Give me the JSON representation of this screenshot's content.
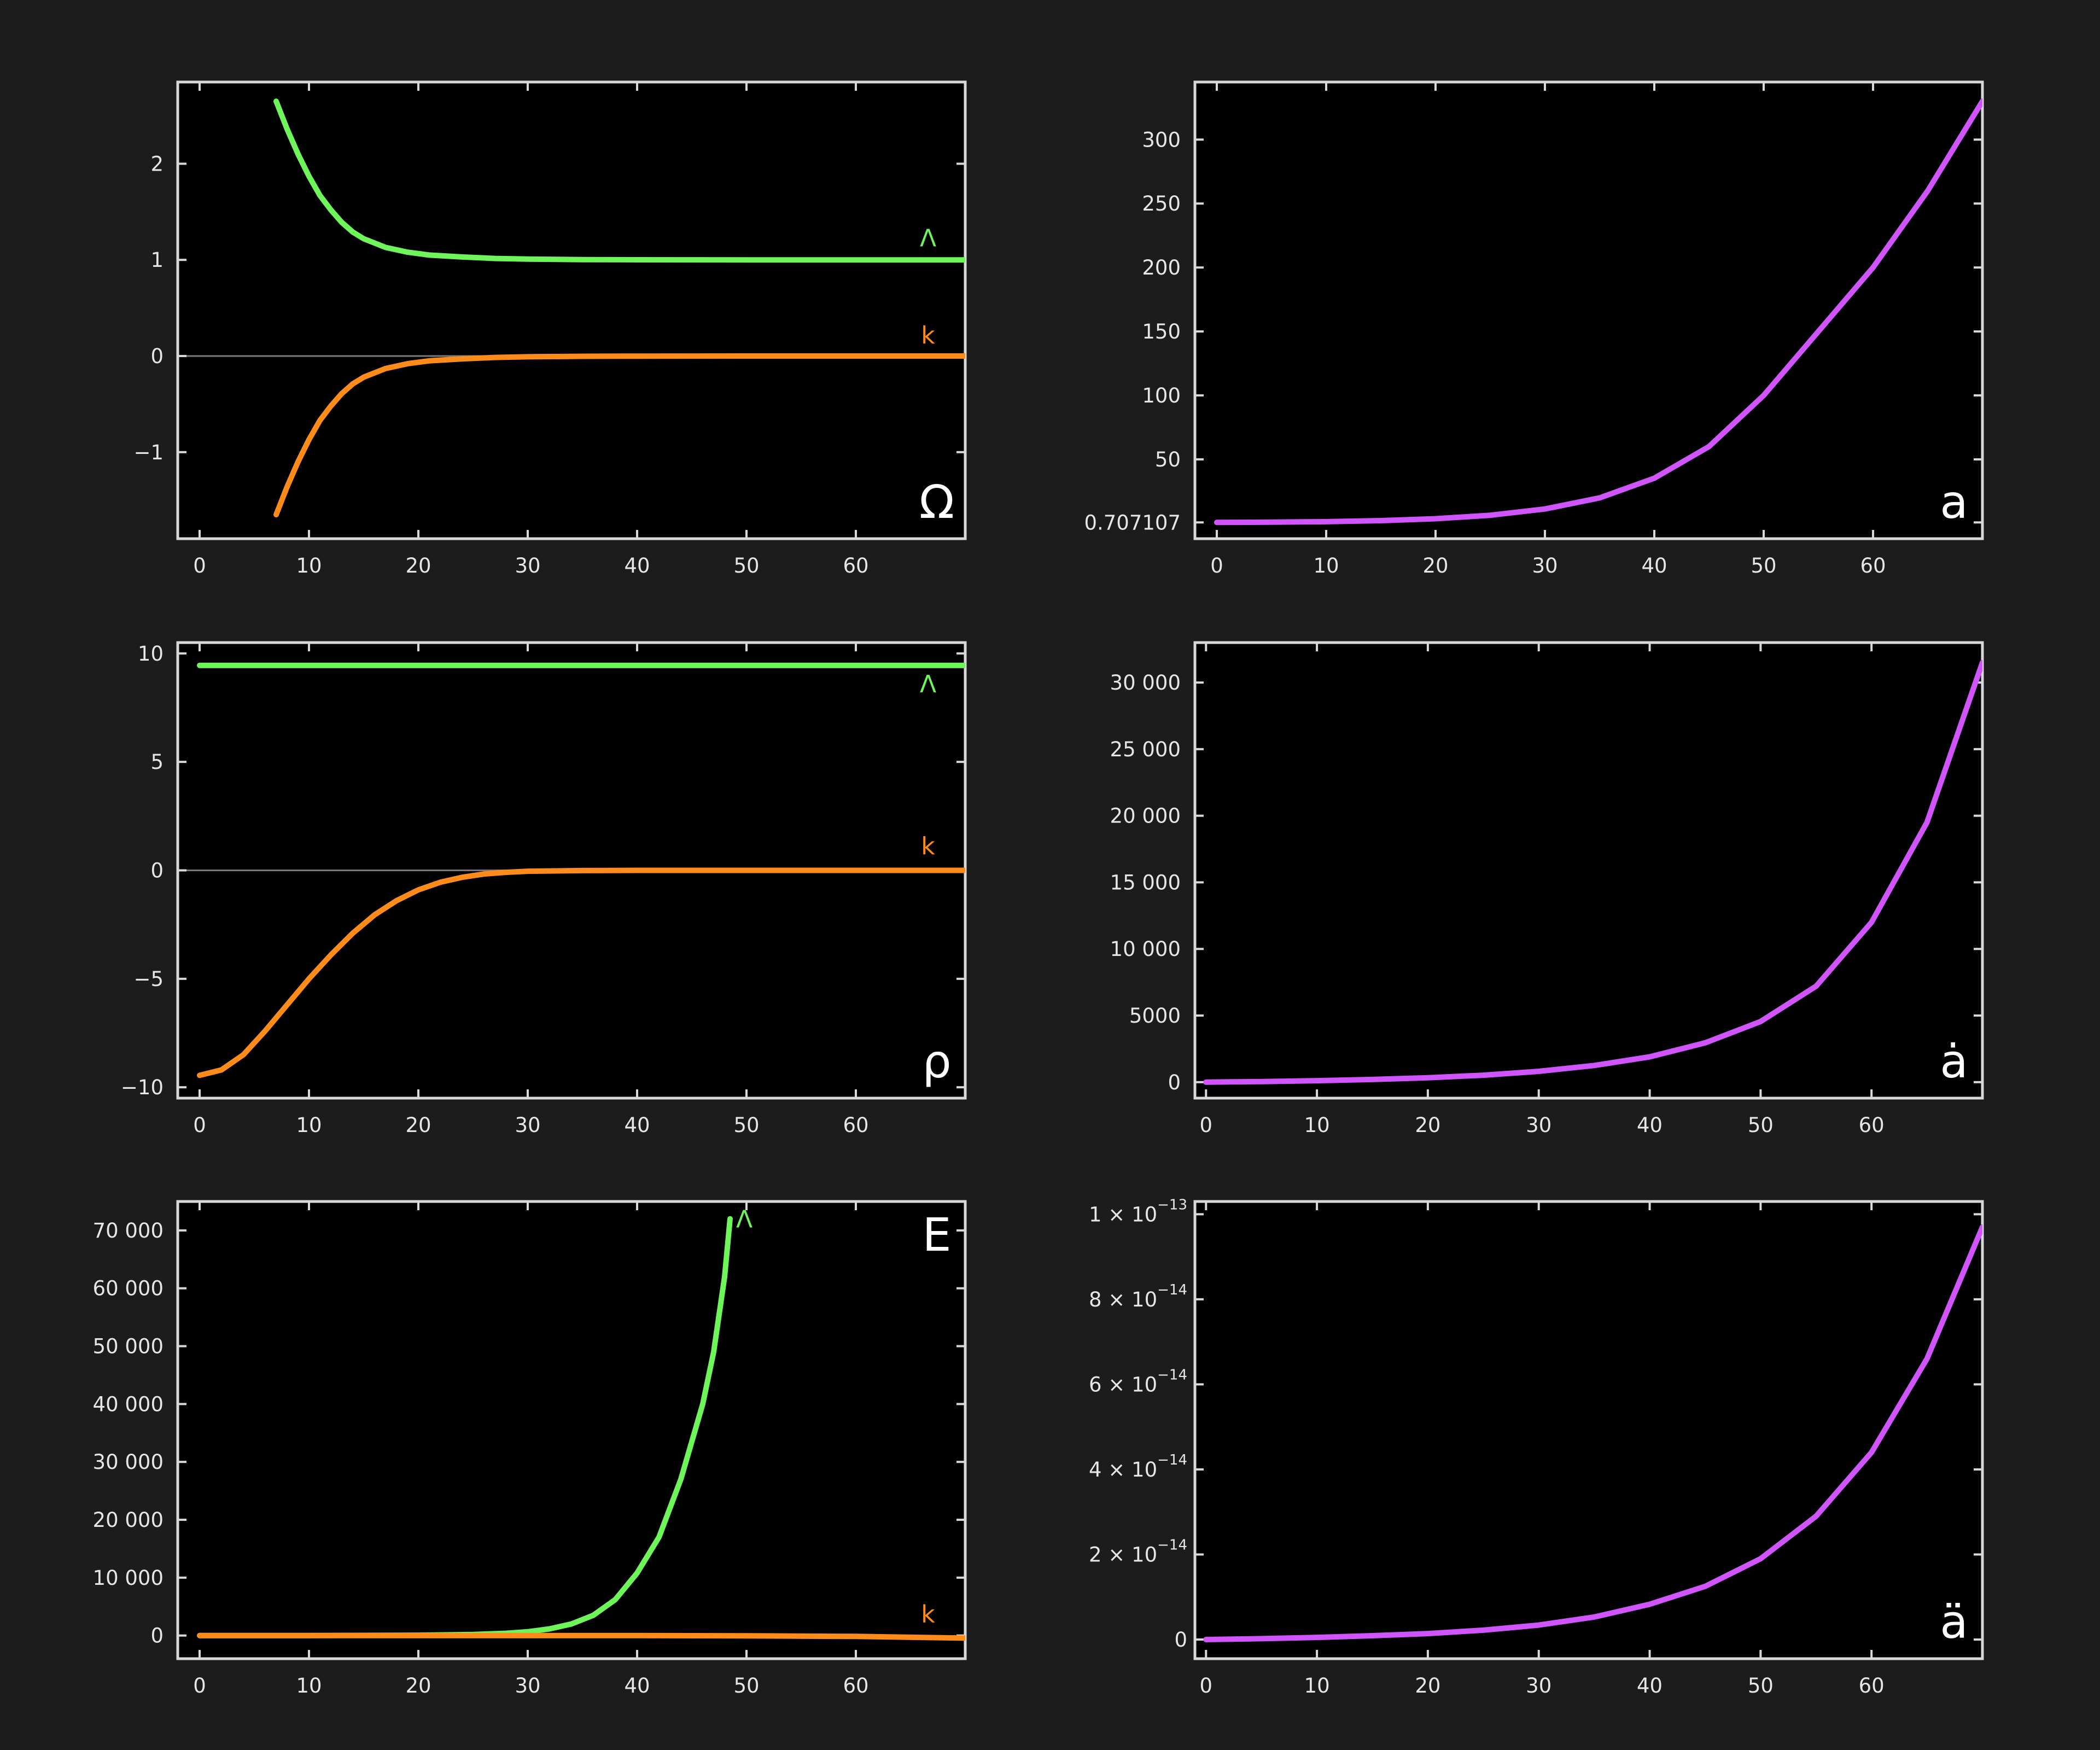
{
  "colors": {
    "background": "#1c1c1c",
    "plot_background": "#000000",
    "frame": "#d8d8d8",
    "lambda": "#6ef55a",
    "k": "#ff8c1a",
    "a": "#d155ff"
  },
  "chart_data": [
    {
      "id": "omega",
      "type": "line",
      "panel_label": "Ω",
      "xlim": [
        -2,
        70
      ],
      "ylim": [
        -1.9,
        2.85
      ],
      "x_ticks": [
        0,
        10,
        20,
        30,
        40,
        50,
        60
      ],
      "x_tick_labels": [
        "0",
        "10",
        "20",
        "30",
        "40",
        "50",
        "60"
      ],
      "y_ticks": [
        -1,
        0,
        1,
        2
      ],
      "y_tick_labels": [
        "−1",
        "0",
        "1",
        "2"
      ],
      "zero_line": true,
      "series": [
        {
          "name": "Λ",
          "color": "#6ef55a",
          "x": [
            7,
            8,
            9,
            10,
            11,
            12,
            13,
            14,
            15,
            17,
            19,
            21,
            24,
            27,
            30,
            35,
            40,
            50,
            60,
            70
          ],
          "y": [
            2.65,
            2.36,
            2.1,
            1.87,
            1.67,
            1.52,
            1.39,
            1.29,
            1.22,
            1.13,
            1.08,
            1.05,
            1.03,
            1.015,
            1.008,
            1.003,
            1.001,
            1.0,
            1.0,
            1.0
          ]
        },
        {
          "name": "k",
          "color": "#ff8c1a",
          "x": [
            7,
            8,
            9,
            10,
            11,
            12,
            13,
            14,
            15,
            17,
            19,
            21,
            24,
            27,
            30,
            35,
            40,
            50,
            60,
            70
          ],
          "y": [
            -1.65,
            -1.36,
            -1.1,
            -0.87,
            -0.67,
            -0.52,
            -0.39,
            -0.29,
            -0.22,
            -0.13,
            -0.08,
            -0.05,
            -0.03,
            -0.015,
            -0.008,
            -0.003,
            -0.001,
            0.0,
            0.0,
            0.0
          ]
        }
      ]
    },
    {
      "id": "a",
      "type": "line",
      "panel_label": "a",
      "xlim": [
        -2,
        70
      ],
      "ylim": [
        -12,
        345
      ],
      "x_ticks": [
        0,
        10,
        20,
        30,
        40,
        50,
        60
      ],
      "x_tick_labels": [
        "0",
        "10",
        "20",
        "30",
        "40",
        "50",
        "60"
      ],
      "y_ticks": [
        0.707107,
        50,
        100,
        150,
        200,
        250,
        300
      ],
      "y_tick_labels": [
        "0.707107",
        "50",
        "100",
        "150",
        "200",
        "250",
        "300"
      ],
      "zero_line": false,
      "series": [
        {
          "name": "",
          "color": "#d155ff",
          "x": [
            0,
            5,
            10,
            15,
            20,
            25,
            30,
            35,
            40,
            45,
            50,
            55,
            60,
            65,
            70
          ],
          "y": [
            0.707,
            0.9,
            1.3,
            2.1,
            3.6,
            6.3,
            11.2,
            19.9,
            35.3,
            60,
            100,
            150,
            200,
            260,
            330
          ]
        }
      ]
    },
    {
      "id": "rho",
      "type": "line",
      "panel_label": "ρ",
      "xlim": [
        -2,
        70
      ],
      "ylim": [
        -10.5,
        10.5
      ],
      "x_ticks": [
        0,
        10,
        20,
        30,
        40,
        50,
        60
      ],
      "x_tick_labels": [
        "0",
        "10",
        "20",
        "30",
        "40",
        "50",
        "60"
      ],
      "y_ticks": [
        -10,
        -5,
        0,
        5,
        10
      ],
      "y_tick_labels": [
        "−10",
        "−5",
        "0",
        "5",
        "10"
      ],
      "zero_line": true,
      "series": [
        {
          "name": "Λ",
          "color": "#6ef55a",
          "x": [
            0,
            70
          ],
          "y": [
            9.45,
            9.45
          ]
        },
        {
          "name": "k",
          "color": "#ff8c1a",
          "x": [
            0,
            2,
            4,
            6,
            8,
            10,
            12,
            14,
            16,
            18,
            20,
            22,
            24,
            26,
            28,
            30,
            35,
            40,
            50,
            60,
            70
          ],
          "y": [
            -9.45,
            -9.2,
            -8.5,
            -7.4,
            -6.2,
            -5.0,
            -3.9,
            -2.9,
            -2.05,
            -1.4,
            -0.9,
            -0.55,
            -0.32,
            -0.17,
            -0.09,
            -0.04,
            -0.01,
            0.0,
            0.0,
            0.0,
            0.0
          ]
        }
      ]
    },
    {
      "id": "adot",
      "type": "line",
      "panel_label": "ȧ",
      "xlim": [
        -1,
        70
      ],
      "ylim": [
        -1200,
        33000
      ],
      "x_ticks": [
        0,
        10,
        20,
        30,
        40,
        50,
        60
      ],
      "x_tick_labels": [
        "0",
        "10",
        "20",
        "30",
        "40",
        "50",
        "60"
      ],
      "y_ticks": [
        0,
        5000,
        10000,
        15000,
        20000,
        25000,
        30000
      ],
      "y_tick_labels": [
        "0",
        "5000",
        "10 000",
        "15 000",
        "20 000",
        "25 000",
        "30 000"
      ],
      "zero_line": false,
      "series": [
        {
          "name": "",
          "color": "#d155ff",
          "x": [
            0,
            5,
            10,
            15,
            20,
            25,
            30,
            35,
            40,
            45,
            50,
            55,
            60,
            65,
            70
          ],
          "y": [
            0,
            45,
            110,
            200,
            330,
            520,
            810,
            1250,
            1900,
            2950,
            4550,
            7200,
            12000,
            19500,
            31500
          ]
        }
      ]
    },
    {
      "id": "energy",
      "type": "line",
      "panel_label": "E",
      "xlim": [
        -2,
        70
      ],
      "ylim": [
        -4000,
        75000
      ],
      "x_ticks": [
        0,
        10,
        20,
        30,
        40,
        50,
        60
      ],
      "x_tick_labels": [
        "0",
        "10",
        "20",
        "30",
        "40",
        "50",
        "60"
      ],
      "y_ticks": [
        0,
        10000,
        20000,
        30000,
        40000,
        50000,
        60000,
        70000
      ],
      "y_tick_labels": [
        "0",
        "10 000",
        "20 000",
        "30 000",
        "40 000",
        "50 000",
        "60 000",
        "70 000"
      ],
      "zero_line": false,
      "series": [
        {
          "name": "Λ",
          "color": "#6ef55a",
          "x": [
            0,
            10,
            20,
            25,
            28,
            30,
            32,
            34,
            36,
            38,
            40,
            42,
            44,
            46,
            47,
            48,
            48.5
          ],
          "y": [
            0,
            0,
            50,
            180,
            380,
            650,
            1150,
            2000,
            3500,
            6200,
            10800,
            17000,
            27000,
            40000,
            49000,
            62000,
            72000
          ]
        },
        {
          "name": "k",
          "color": "#ff8c1a",
          "x": [
            0,
            20,
            40,
            50,
            60,
            70
          ],
          "y": [
            0,
            0,
            0,
            -50,
            -150,
            -450
          ]
        }
      ]
    },
    {
      "id": "addot",
      "type": "line",
      "panel_label": "ä",
      "xlim": [
        -1,
        70
      ],
      "ylim": [
        -4.5e-15,
        1.03e-13
      ],
      "x_ticks": [
        0,
        10,
        20,
        30,
        40,
        50,
        60
      ],
      "x_tick_labels": [
        "0",
        "10",
        "20",
        "30",
        "40",
        "50",
        "60"
      ],
      "y_ticks": [
        0,
        2e-14,
        4e-14,
        6e-14,
        8e-14,
        1e-13
      ],
      "y_tick_labels": [
        [
          "0",
          ""
        ],
        [
          "2 × 10",
          "−14"
        ],
        [
          "4 × 10",
          "−14"
        ],
        [
          "6 × 10",
          "−14"
        ],
        [
          "8 × 10",
          "−14"
        ],
        [
          "1 × 10",
          "−13"
        ]
      ],
      "zero_line": false,
      "series": [
        {
          "name": "",
          "color": "#d155ff",
          "x": [
            0,
            5,
            10,
            15,
            20,
            25,
            30,
            35,
            40,
            45,
            50,
            55,
            60,
            65,
            70
          ],
          "y": [
            0,
            2e-16,
            5e-16,
            9e-16,
            1.4e-15,
            2.2e-15,
            3.4e-15,
            5.3e-15,
            8.3e-15,
            1.25e-14,
            1.9e-14,
            2.9e-14,
            4.4e-14,
            6.6e-14,
            9.7e-14
          ]
        }
      ]
    }
  ]
}
